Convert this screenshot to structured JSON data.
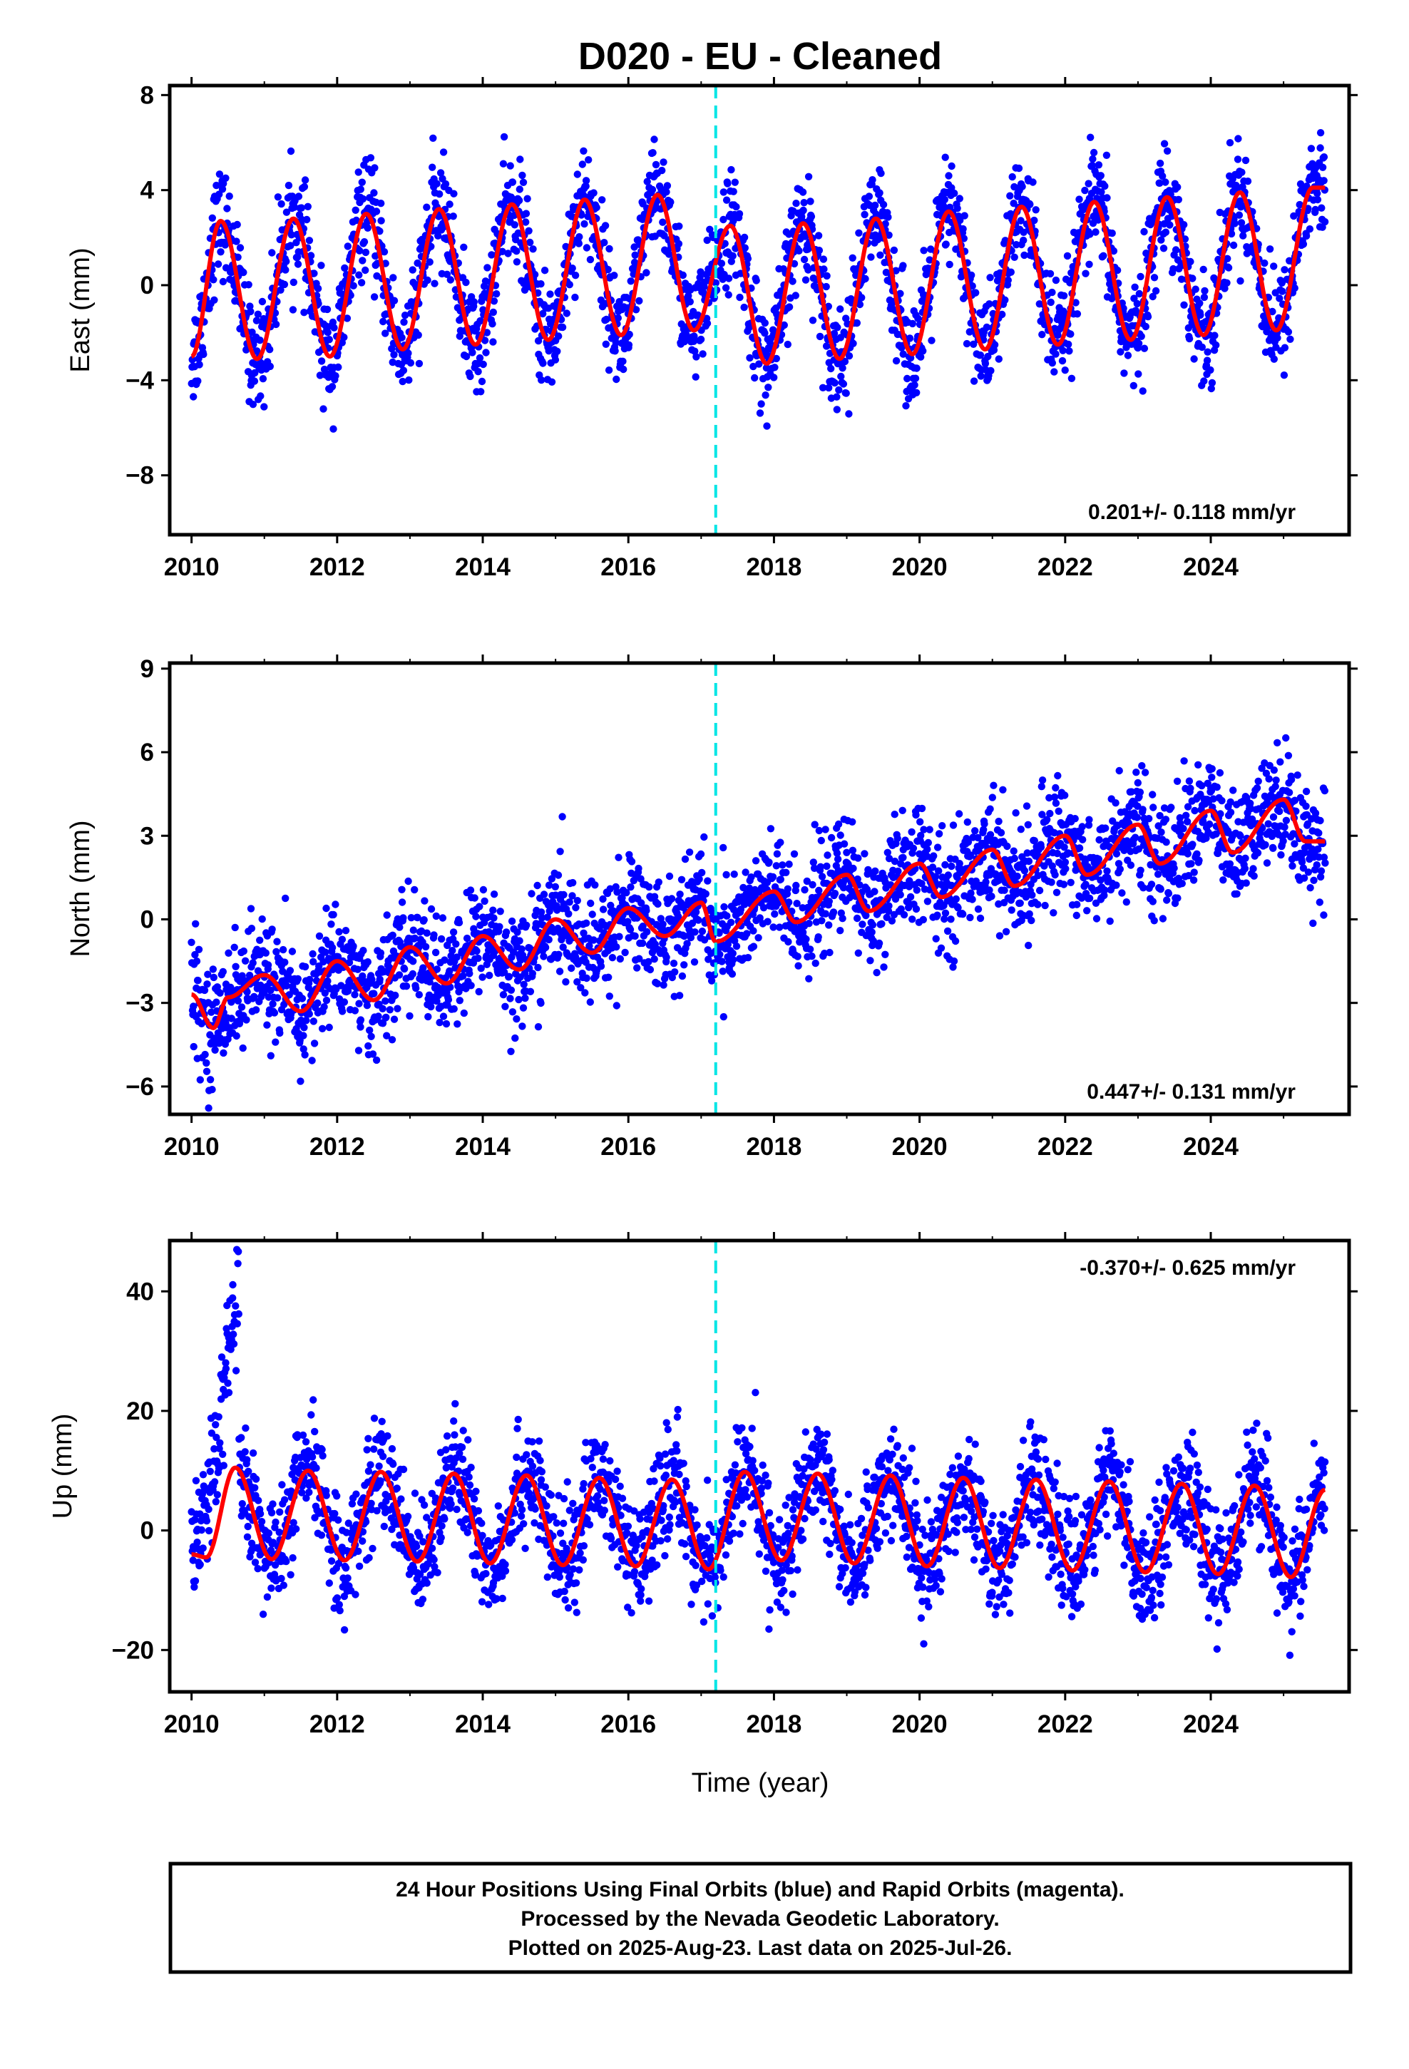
{
  "title": "D020  - EU - Cleaned",
  "colors": {
    "points": "#0000ff",
    "model": "#ff0000",
    "break": "#00e5e5",
    "frame": "#000000"
  },
  "xlabel": "Time (year)",
  "chart_data": [
    {
      "type": "scatter",
      "component": "east",
      "ylabel": "East (mm)",
      "xlim": [
        2009.7,
        2025.9
      ],
      "ylim": [
        -10.5,
        8.4
      ],
      "xticks": [
        2010,
        2012,
        2014,
        2016,
        2018,
        2020,
        2022,
        2024
      ],
      "xtick_labels": [
        "2010",
        "2012",
        "2014",
        "2016",
        "2018",
        "2020",
        "2022",
        "2024"
      ],
      "yticks": [
        8,
        4,
        0,
        -4,
        -8
      ],
      "ytick_labels": [
        "8",
        "4",
        "0",
        "−4",
        "−8"
      ],
      "rate_label": "0.201+/- 0.118 mm/yr",
      "rate_position": "bottom-right",
      "break_line_x": 2017.2,
      "series": [
        {
          "role": "daily positions (blue)",
          "x_range": [
            2010.0,
            2025.57
          ],
          "model_mean_mm": 0.0,
          "trend_mm_per_yr": 0.201,
          "annual_amplitude_mm": 3.0,
          "scatter_sd_mm": 1.1
        },
        {
          "role": "model fit (red)",
          "x_range": [
            2010.0,
            2025.57
          ],
          "peaks": [
            [
              2010.4,
              2.7
            ],
            [
              2011.4,
              2.8
            ],
            [
              2012.4,
              3.0
            ],
            [
              2013.4,
              3.2
            ],
            [
              2014.4,
              3.4
            ],
            [
              2015.4,
              3.6
            ],
            [
              2016.4,
              3.8
            ],
            [
              2017.4,
              2.5
            ],
            [
              2018.4,
              2.6
            ],
            [
              2019.4,
              2.8
            ],
            [
              2020.4,
              3.1
            ],
            [
              2021.4,
              3.3
            ],
            [
              2022.4,
              3.5
            ],
            [
              2023.4,
              3.7
            ],
            [
              2024.4,
              3.9
            ],
            [
              2025.4,
              4.1
            ]
          ],
          "troughs": [
            [
              2010.0,
              -3.0
            ],
            [
              2010.9,
              -3.1
            ],
            [
              2011.9,
              -3.0
            ],
            [
              2012.9,
              -2.7
            ],
            [
              2013.9,
              -2.5
            ],
            [
              2014.9,
              -2.3
            ],
            [
              2015.9,
              -2.1
            ],
            [
              2016.9,
              -1.9
            ],
            [
              2017.9,
              -3.3
            ],
            [
              2018.9,
              -3.1
            ],
            [
              2019.9,
              -2.9
            ],
            [
              2020.9,
              -2.7
            ],
            [
              2021.9,
              -2.5
            ],
            [
              2022.9,
              -2.3
            ],
            [
              2023.9,
              -2.1
            ],
            [
              2024.9,
              -1.9
            ]
          ]
        }
      ]
    },
    {
      "type": "scatter",
      "component": "north",
      "ylabel": "North (mm)",
      "xlim": [
        2009.7,
        2025.9
      ],
      "ylim": [
        -7.0,
        9.2
      ],
      "xticks": [
        2010,
        2012,
        2014,
        2016,
        2018,
        2020,
        2022,
        2024
      ],
      "xtick_labels": [
        "2010",
        "2012",
        "2014",
        "2016",
        "2018",
        "2020",
        "2022",
        "2024"
      ],
      "yticks": [
        9,
        6,
        3,
        0,
        -3,
        -6
      ],
      "ytick_labels": [
        "9",
        "6",
        "3",
        "0",
        "−3",
        "−6"
      ],
      "rate_label": "0.447+/- 0.131 mm/yr",
      "rate_position": "bottom-right",
      "break_line_x": 2017.2,
      "series": [
        {
          "role": "daily positions (blue)",
          "x_range": [
            2010.0,
            2025.57
          ],
          "trend_mm_per_yr": 0.447,
          "scatter_sd_mm": 1.0
        },
        {
          "role": "model fit (red)",
          "x_range": [
            2010.0,
            2025.57
          ],
          "peaks": [
            [
              2010.5,
              -2.8
            ],
            [
              2011.0,
              -2.0
            ],
            [
              2012.0,
              -1.5
            ],
            [
              2013.0,
              -1.0
            ],
            [
              2014.0,
              -0.6
            ],
            [
              2015.0,
              0.0
            ],
            [
              2016.0,
              0.4
            ],
            [
              2017.0,
              0.6
            ],
            [
              2018.0,
              1.0
            ],
            [
              2019.0,
              1.6
            ],
            [
              2020.0,
              2.0
            ],
            [
              2021.0,
              2.5
            ],
            [
              2022.0,
              3.0
            ],
            [
              2023.0,
              3.4
            ],
            [
              2024.0,
              3.9
            ],
            [
              2025.0,
              4.3
            ]
          ],
          "troughs": [
            [
              2010.0,
              -2.7
            ],
            [
              2010.3,
              -3.9
            ],
            [
              2011.5,
              -3.3
            ],
            [
              2012.5,
              -2.9
            ],
            [
              2013.5,
              -2.3
            ],
            [
              2014.5,
              -1.8
            ],
            [
              2015.5,
              -1.2
            ],
            [
              2016.5,
              -0.6
            ],
            [
              2017.2,
              -0.8
            ],
            [
              2018.3,
              -0.1
            ],
            [
              2019.3,
              0.3
            ],
            [
              2020.3,
              0.8
            ],
            [
              2021.3,
              1.2
            ],
            [
              2022.3,
              1.6
            ],
            [
              2023.3,
              2.0
            ],
            [
              2024.3,
              2.4
            ],
            [
              2025.3,
              2.8
            ]
          ]
        }
      ]
    },
    {
      "type": "scatter",
      "component": "up",
      "ylabel": "Up (mm)",
      "xlim": [
        2009.7,
        2025.9
      ],
      "ylim": [
        -27.0,
        48.5
      ],
      "xticks": [
        2010,
        2012,
        2014,
        2016,
        2018,
        2020,
        2022,
        2024
      ],
      "xtick_labels": [
        "2010",
        "2012",
        "2014",
        "2016",
        "2018",
        "2020",
        "2022",
        "2024"
      ],
      "yticks": [
        40,
        20,
        0,
        -20
      ],
      "ytick_labels": [
        "40",
        "20",
        "0",
        "−20"
      ],
      "rate_label": "-0.370+/- 0.625 mm/yr",
      "rate_position": "top-right",
      "break_line_x": 2017.2,
      "series": [
        {
          "role": "daily positions (blue)",
          "x_range": [
            2010.0,
            2025.57
          ],
          "trend_mm_per_yr": -0.37,
          "scatter_sd_mm": 4.5,
          "anomaly_2010": {
            "x_range": [
              2010.0,
              2010.65
            ],
            "peak_mm": 47
          }
        },
        {
          "role": "model fit (red)",
          "x_range": [
            2010.0,
            2025.57
          ],
          "peaks": [
            [
              2010.6,
              10.5
            ],
            [
              2011.6,
              10.0
            ],
            [
              2012.6,
              9.8
            ],
            [
              2013.6,
              9.5
            ],
            [
              2014.6,
              9.2
            ],
            [
              2015.6,
              8.8
            ],
            [
              2016.6,
              8.5
            ],
            [
              2017.6,
              9.8
            ],
            [
              2018.6,
              9.5
            ],
            [
              2019.6,
              9.2
            ],
            [
              2020.6,
              8.8
            ],
            [
              2021.6,
              8.5
            ],
            [
              2022.6,
              8.2
            ],
            [
              2023.6,
              7.8
            ],
            [
              2024.6,
              7.5
            ],
            [
              2025.57,
              6.8
            ]
          ],
          "troughs": [
            [
              2010.0,
              -4.0
            ],
            [
              2010.2,
              -4.5
            ],
            [
              2011.1,
              -4.8
            ],
            [
              2012.1,
              -5.0
            ],
            [
              2013.1,
              -5.2
            ],
            [
              2014.1,
              -5.5
            ],
            [
              2015.1,
              -5.8
            ],
            [
              2016.1,
              -6.0
            ],
            [
              2017.1,
              -6.5
            ],
            [
              2018.1,
              -5.0
            ],
            [
              2019.1,
              -5.5
            ],
            [
              2020.1,
              -6.0
            ],
            [
              2021.1,
              -6.3
            ],
            [
              2022.1,
              -6.7
            ],
            [
              2023.1,
              -7.0
            ],
            [
              2024.1,
              -7.3
            ],
            [
              2025.1,
              -7.8
            ]
          ]
        }
      ]
    }
  ],
  "footer": {
    "line1": "24 Hour Positions Using Final Orbits (blue) and Rapid Orbits (magenta).",
    "line2": "Processed by the Nevada Geodetic Laboratory.",
    "line3": "Plotted on 2025-Aug-23. Last data on 2025-Jul-26."
  }
}
